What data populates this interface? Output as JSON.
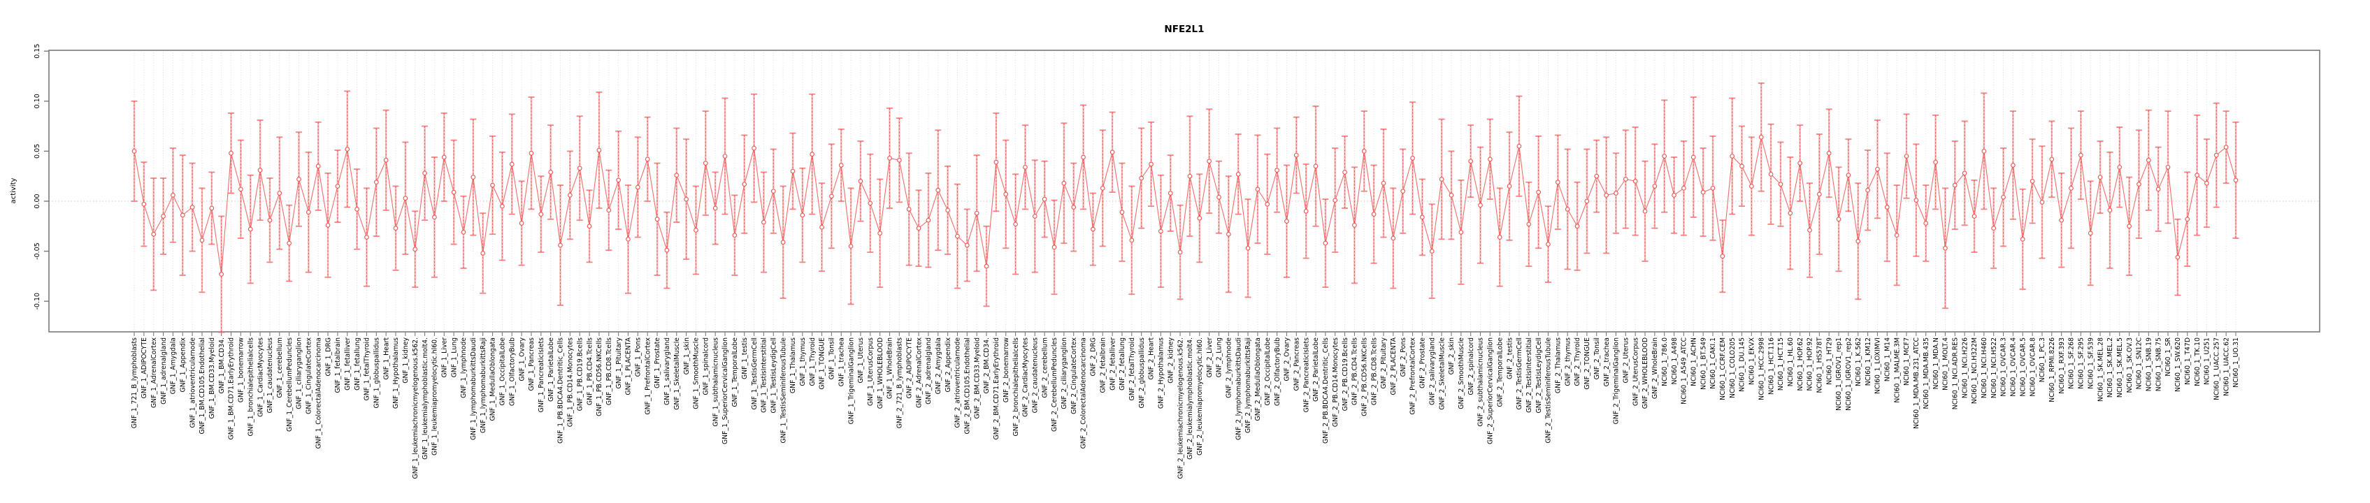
{
  "chart_data": {
    "type": "line",
    "title": "NFE2L1",
    "ylabel": "activity",
    "xlabel": "",
    "ylim": [
      -0.131,
      0.15
    ],
    "yticks": [
      0.15,
      0.1,
      0.05,
      0.0,
      -0.05,
      -0.1
    ],
    "ytick_labels": [
      "0.15",
      "0.10",
      "0.05",
      "0.00",
      "-0.05",
      "-0.10"
    ],
    "grid": "dotted vertical gridline at every category; dotted horizontal line at y=0; legend none",
    "marker": "open-circle with error bars (caps), points connected by line",
    "colors": {
      "series": "#ef5350",
      "bar_fill": "rgba(244,115,115,0.50)",
      "bar_dash": "rgba(235,70,70,0.85)",
      "cap": "rgba(242,100,100,0.80)",
      "grid": "#dcdcdc",
      "zero_line": "#c8c8c8",
      "box": "#7a7a7a",
      "text": "#000000"
    },
    "categories": [
      "GNF_1_721_B_lymphoblasts",
      "GNF_1_ADIPOCYTE",
      "GNF_1_AdrenalCortex",
      "GNF_1_adrenalgland",
      "GNF_1_Amygdala",
      "GNF_1_Appendix",
      "GNF_1_atrioventricularnode",
      "GNF_1_BM.CD105.Endothelial",
      "GNF_1_BM.CD33.Myeloid",
      "GNF_1_BM.CD34.",
      "GNF_1_BM.CD71.EarlyErythroid",
      "GNF_1_bonemarrow",
      "GNF_1_bronchialepithelialcells",
      "GNF_1_CardiacMyocytes",
      "GNF_1_caudatenucleus",
      "GNF_1_cerebellum",
      "GNF_1_CerebellumPeduncles",
      "GNF_1_ciliaryganglion",
      "GNF_1_CingulateCortex",
      "GNF_1_ColorectalAdenocarcinoma",
      "GNF_1_DRG",
      "GNF_1_fetalbrain",
      "GNF_1_fetalliver",
      "GNF_1_fetallung",
      "GNF_1_fetalThyroid",
      "GNF_1_globuspallidus",
      "GNF_1_Heart",
      "GNF_1_Hypothalamus",
      "GNF_1_kidney",
      "GNF_1_leukemiachronicmyelogenous.k562.",
      "GNF_1_leukemialymphoblastic.molt4.",
      "GNF_1_leukemiapromyelocytic.hl60.",
      "GNF_1_Liver",
      "GNF_1_Lung",
      "GNF_1_lymphnode",
      "GNF_1_lymphomaburkittsDaudi",
      "GNF_1_lymphomaburkittsRaji",
      "GNF_1_MedullaOblongata",
      "GNF_1_OccipitalLobe",
      "GNF_1_OlfactoryBulb",
      "GNF_1_Ovary",
      "GNF_1_Pancreas",
      "GNF_1_PancreaticIslets",
      "GNF_1_ParietalLobe",
      "GNF_1_PB.BDCA4.Dentritic_Cells",
      "GNF_1_PB.CD14.Monocytes",
      "GNF_1_PB.CD19.Bcells",
      "GNF_1_PB.CD4.Tcells",
      "GNF_1_PB.CD56.NKCells",
      "GNF_1_PB.CD8.Tcells",
      "GNF_1_Pituitary",
      "GNF_1_PLACENTA",
      "GNF_1_Pons",
      "GNF_1_PrefrontalCortex",
      "GNF_1_Prostate",
      "GNF_1_salivarygland",
      "GNF_1_SkeletalMuscle",
      "GNF_1_skin",
      "GNF_1_SmoothMuscle",
      "GNF_1_spinalcord",
      "GNF_1_subthalamicnucleus",
      "GNF_1_SuperiorCervicalGanglion",
      "GNF_1_TemporalLobe",
      "GNF_1_testis",
      "GNF_1_TestisGermCell",
      "GNF_1_TestisInterstitial",
      "GNF_1_TestisLeydigCell",
      "GNF_1_TestisSeminiferousTubule",
      "GNF_1_Thalamus",
      "GNF_1_thymus",
      "GNF_1_Thyroid",
      "GNF_1_TONGUE",
      "GNF_1_Tonsil",
      "GNF_1_trachea",
      "GNF_1_TrigeminalGanglion",
      "GNF_1_Uterus",
      "GNF_1_UterusCorpus",
      "GNF_1_WHOLEBLOOD",
      "GNF_1_WholeBrain",
      "GNF_2_721_B_lymphoblasts",
      "GNF_2_ADIPOCYTE",
      "GNF_2_AdrenalCortex",
      "GNF_2_adrenalgland",
      "GNF_2_Amygdala",
      "GNF_2_Appendix",
      "GNF_2_atrioventricularnode",
      "GNF_2_BM.CD105.Endothelial",
      "GNF_2_BM.CD33.Myeloid",
      "GNF_2_BM.CD34.",
      "GNF_2_BM.CD71.EarlyErythroid",
      "GNF_2_bonemarrow",
      "GNF_2_bronchialepithelialcells",
      "GNF_2_CardiacMyocytes",
      "GNF_2_caudatenucleus",
      "GNF_2_cerebellum",
      "GNF_2_CerebellumPeduncles",
      "GNF_2_ciliaryganglion",
      "GNF_2_CingulateCortex",
      "GNF_2_ColorectalAdenocarcinoma",
      "GNF_2_DRG",
      "GNF_2_fetalbrain",
      "GNF_2_fetalliver",
      "GNF_2_fetallung",
      "GNF_2_fetalThyroid",
      "GNF_2_globuspallidus",
      "GNF_2_Heart",
      "GNF_2_Hypothalamus",
      "GNF_2_kidney",
      "GNF_2_leukemiachronicmyelogenous.k562.",
      "GNF_2_leukemialymphoblastic.molt4.",
      "GNF_2_leukemiapromyelocytic.hl60.",
      "GNF_2_Liver",
      "GNF_2_Lung",
      "GNF_2_lymphnode",
      "GNF_2_lymphomaburkittsDaudi",
      "GNF_2_lymphomaburkittsRaji",
      "GNF_2_MedullaOblongata",
      "GNF_2_OccipitalLobe",
      "GNF_2_OlfactoryBulb",
      "GNF_2_Ovary",
      "GNF_2_Pancreas",
      "GNF_2_PancreaticIslets",
      "GNF_2_ParietalLobe",
      "GNF_2_PB.BDCA4.Dentritic_Cells",
      "GNF_2_PB.CD14.Monocytes",
      "GNF_2_PB.CD19.Bcells",
      "GNF_2_PB.CD4.Tcells",
      "GNF_2_PB.CD56.NKCells",
      "GNF_2_PB.CD8.Tcells",
      "GNF_2_Pituitary",
      "GNF_2_PLACENTA",
      "GNF_2_Pons",
      "GNF_2_PrefrontalCortex",
      "GNF_2_Prostate",
      "GNF_2_salivarygland",
      "GNF_2_SkeletalMuscle",
      "GNF_2_skin",
      "GNF_2_SmoothMuscle",
      "GNF_2_spinalcord",
      "GNF_2_subthalamicnucleus",
      "GNF_2_SuperiorCervicalGanglion",
      "GNF_2_TemporalLobe",
      "GNF_2_testis",
      "GNF_2_TestisGermCell",
      "GNF_2_TestisInterstitial",
      "GNF_2_TestisLeydigCell",
      "GNF_2_TestisSeminiferousTubule",
      "GNF_2_Thalamus",
      "GNF_2_thymus",
      "GNF_2_Thyroid",
      "GNF_2_TONGUE",
      "GNF_2_Tonsil",
      "GNF_2_trachea",
      "GNF_2_TrigeminalGanglion",
      "GNF_2_Uterus",
      "GNF_2_UterusCorpus",
      "GNF_2_WHOLEBLOOD",
      "GNF_2_WholeBrain",
      "NCI60_1_786.0",
      "NCI60_1_A498",
      "NCI60_1_A549_ATCC",
      "NCI60_1_ACHN",
      "NCI60_1_BT.549",
      "NCI60_1_CAKI.1",
      "NCI60_1_CCRF.CEM",
      "NCI60_1_COLO205",
      "NCI60_1_DU.145",
      "NCI60_1_EKVX",
      "NCI60_1_HCC.2998",
      "NCI60_1_HCT.116",
      "NCI60_1_HCT.15",
      "NCI60_1_HL.60",
      "NCI60_1_HOP.62",
      "NCI60_1_HOP.92",
      "NCI60_1_HS578T",
      "NCI60_1_HT29",
      "NCI60_1_IGROV1_rep1",
      "NCI60_1_IGROV1_rep2",
      "NCI60_1_K.562",
      "NCI60_1_KM12",
      "NCI60_1_LOXIMVI",
      "NCI60_1_M14",
      "NCI60_1_MALME.3M",
      "NCI60_1_MCF7",
      "NCI60_1_MDA.MB.231_ATCC",
      "NCI60_1_MDA.MB.435",
      "NCI60_1_MDA.N",
      "NCI60_1_MOLT.4",
      "NCI60_1_NCI.ADR.RES",
      "NCI60_1_NCI.H226",
      "NCI60_1_NCI.H322M",
      "NCI60_1_NCI.H460",
      "NCI60_1_NCI.H522",
      "NCI60_1_OVCAR.3",
      "NCI60_1_OVCAR.4",
      "NCI60_1_OVCAR.5",
      "NCI60_1_OVCAR.8",
      "NCI60_1_PC.3",
      "NCI60_1_RPMI.8226",
      "NCI60_1_RXF.393",
      "NCI60_1_SF.268",
      "NCI60_1_SF.295",
      "NCI60_1_SF.539",
      "NCI60_1_SK.MEL.28",
      "NCI60_1_SK.MEL.2",
      "NCI60_1_SK.MEL.5",
      "NCI60_1_SK.OV.3",
      "NCI60_1_SN12C",
      "NCI60_1_SNB.19",
      "NCI60_1_SNB.75",
      "NCI60_1_SR",
      "NCI60_1_SW.620",
      "NCI60_1_T47D",
      "NCI60_1_TK.10",
      "NCI60_1_U251",
      "NCI60_1_UACC.257",
      "NCI60_1_UACC.62",
      "NCI60_1_UO.31"
    ],
    "values": [
      0.05,
      -0.003,
      -0.033,
      -0.015,
      0.006,
      -0.014,
      -0.006,
      -0.039,
      -0.007,
      -0.073,
      0.048,
      0.012,
      -0.028,
      0.031,
      -0.019,
      0.008,
      -0.042,
      0.022,
      -0.011,
      0.035,
      -0.024,
      0.015,
      0.052,
      -0.008,
      -0.036,
      0.019,
      0.041,
      -0.027,
      0.003,
      -0.048,
      0.028,
      -0.016,
      0.044,
      0.009,
      -0.031,
      0.024,
      -0.052,
      0.016,
      -0.005,
      0.037,
      -0.022,
      0.048,
      -0.013,
      0.029,
      -0.044,
      0.006,
      0.033,
      -0.025,
      0.051,
      -0.009,
      0.021,
      -0.038,
      0.014,
      0.042,
      -0.018,
      -0.049,
      0.026,
      0.002,
      -0.029,
      0.038,
      -0.007,
      0.045,
      -0.034,
      0.017,
      0.053,
      -0.021,
      0.01,
      -0.041,
      0.03,
      -0.014,
      0.047,
      -0.026,
      0.005,
      0.036,
      -0.045,
      0.02,
      -0.002,
      -0.032,
      0.043,
      0.041,
      -0.008,
      -0.027,
      -0.019,
      0.011,
      -0.009,
      -0.035,
      -0.044,
      -0.012,
      -0.065,
      0.039,
      0.007,
      -0.023,
      0.034,
      -0.015,
      0.002,
      -0.046,
      0.018,
      -0.006,
      0.044,
      -0.028,
      0.013,
      0.049,
      -0.011,
      -0.039,
      0.023,
      0.037,
      -0.03,
      0.008,
      -0.051,
      0.025,
      -0.017,
      0.04,
      0.004,
      -0.033,
      0.027,
      -0.047,
      0.012,
      -0.003,
      0.031,
      -0.02,
      0.046,
      -0.01,
      0.035,
      -0.042,
      0.001,
      0.029,
      -0.024,
      0.05,
      -0.013,
      0.018,
      -0.037,
      0.01,
      0.043,
      -0.016,
      -0.05,
      0.022,
      0.006,
      -0.031,
      0.04,
      -0.004,
      0.042,
      -0.036,
      0.015,
      0.055,
      -0.023,
      0.009,
      -0.043,
      0.019,
      -0.008,
      -0.025,
      0.0,
      0.025,
      0.006,
      0.008,
      0.022,
      0.02,
      -0.01,
      0.015,
      0.045,
      0.006,
      0.013,
      0.044,
      0.009,
      0.013,
      -0.055,
      0.045,
      0.035,
      0.015,
      0.064,
      0.027,
      0.017,
      -0.012,
      0.038,
      -0.029,
      0.007,
      0.048,
      -0.018,
      0.026,
      -0.04,
      0.011,
      0.032,
      -0.006,
      -0.034,
      0.045,
      0.001,
      -0.022,
      0.039,
      -0.047,
      0.016,
      0.028,
      -0.015,
      0.05,
      -0.027,
      0.004,
      0.036,
      -0.038,
      0.02,
      -0.001,
      0.042,
      -0.019,
      0.013,
      0.046,
      -0.032,
      0.024,
      -0.009,
      0.034,
      -0.025,
      0.017,
      0.041,
      0.012,
      0.034,
      -0.056,
      -0.018,
      0.026,
      0.018,
      0.046,
      0.054,
      0.021
    ],
    "errors": [
      0.05,
      0.042,
      0.056,
      0.038,
      0.047,
      0.06,
      0.044,
      0.052,
      0.036,
      0.058,
      0.04,
      0.049,
      0.054,
      0.05,
      0.042,
      0.056,
      0.038,
      0.047,
      0.06,
      0.044,
      0.052,
      0.036,
      0.058,
      0.04,
      0.049,
      0.054,
      0.05,
      0.042,
      0.056,
      0.038,
      0.047,
      0.06,
      0.044,
      0.052,
      0.036,
      0.058,
      0.04,
      0.049,
      0.054,
      0.05,
      0.042,
      0.056,
      0.038,
      0.047,
      0.06,
      0.044,
      0.052,
      0.036,
      0.058,
      0.04,
      0.049,
      0.054,
      0.05,
      0.042,
      0.056,
      0.038,
      0.047,
      0.06,
      0.044,
      0.052,
      0.036,
      0.058,
      0.04,
      0.049,
      0.054,
      0.05,
      0.042,
      0.056,
      0.038,
      0.047,
      0.06,
      0.044,
      0.052,
      0.036,
      0.058,
      0.04,
      0.049,
      0.054,
      0.05,
      0.042,
      0.056,
      0.038,
      0.047,
      0.06,
      0.044,
      0.052,
      0.036,
      0.058,
      0.04,
      0.049,
      0.054,
      0.05,
      0.042,
      0.056,
      0.038,
      0.047,
      0.06,
      0.044,
      0.052,
      0.036,
      0.058,
      0.04,
      0.049,
      0.054,
      0.05,
      0.042,
      0.056,
      0.038,
      0.047,
      0.06,
      0.044,
      0.052,
      0.036,
      0.058,
      0.04,
      0.049,
      0.054,
      0.05,
      0.042,
      0.056,
      0.038,
      0.047,
      0.06,
      0.044,
      0.052,
      0.036,
      0.058,
      0.04,
      0.049,
      0.054,
      0.05,
      0.042,
      0.056,
      0.038,
      0.047,
      0.06,
      0.044,
      0.052,
      0.036,
      0.058,
      0.04,
      0.049,
      0.054,
      0.05,
      0.042,
      0.056,
      0.038,
      0.047,
      0.06,
      0.044,
      0.052,
      0.036,
      0.058,
      0.04,
      0.049,
      0.054,
      0.05,
      0.042,
      0.056,
      0.038,
      0.047,
      0.06,
      0.044,
      0.052,
      0.036,
      0.058,
      0.04,
      0.049,
      0.054,
      0.05,
      0.042,
      0.056,
      0.038,
      0.047,
      0.06,
      0.044,
      0.052,
      0.036,
      0.058,
      0.04,
      0.049,
      0.054,
      0.05,
      0.042,
      0.056,
      0.038,
      0.047,
      0.06,
      0.044,
      0.052,
      0.036,
      0.058,
      0.04,
      0.049,
      0.054,
      0.05,
      0.042,
      0.056,
      0.038,
      0.047,
      0.06,
      0.044,
      0.052,
      0.036,
      0.058,
      0.04,
      0.049,
      0.054,
      0.05,
      0.042,
      0.056,
      0.038,
      0.047,
      0.06,
      0.044,
      0.052,
      0.036,
      0.058
    ]
  }
}
